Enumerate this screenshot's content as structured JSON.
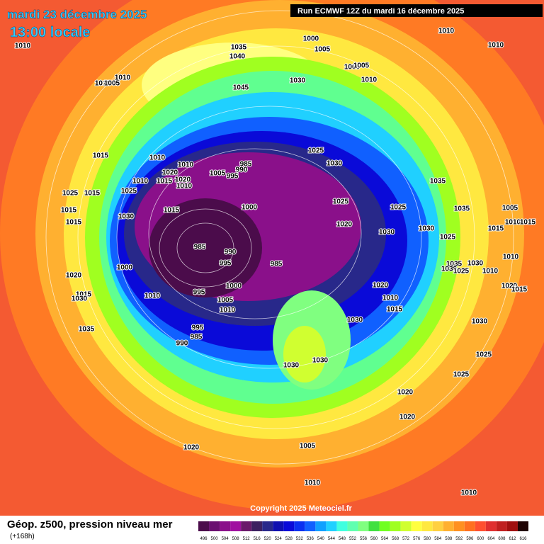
{
  "header": {
    "date": "mardi 23 décembre 2025",
    "time": "13:00 locale",
    "run": "Run ECMWF 12Z du mardi 16 décembre 2025"
  },
  "isobar_labels": [
    "1010",
    "1035",
    "1040",
    "1000",
    "1005",
    "1010",
    "1010",
    "1000",
    "1005",
    "1010",
    "1010",
    "1010",
    "1005",
    "1030",
    "1045",
    "1015",
    "1010",
    "1025",
    "1030",
    "1010",
    "985",
    "990",
    "1005",
    "995",
    "1020",
    "1010",
    "1015",
    "1020",
    "1010",
    "1025",
    "1025",
    "1015",
    "1035",
    "1000",
    "1015",
    "1025",
    "1025",
    "1035",
    "1005",
    "1015",
    "1015",
    "1030",
    "1020",
    "1010",
    "1015",
    "1015",
    "1030",
    "1030",
    "1025",
    "985",
    "990",
    "1000",
    "995",
    "985",
    "1035",
    "1030",
    "1030",
    "1025",
    "1010",
    "1010",
    "1020",
    "1020",
    "1020",
    "1015",
    "1000",
    "995",
    "1010",
    "1005",
    "1010",
    "1015",
    "1030",
    "1010",
    "1015",
    "1030",
    "1030",
    "995",
    "1035",
    "985",
    "990",
    "1030",
    "1030",
    "1025",
    "1025",
    "1020",
    "1020",
    "1020",
    "1005",
    "1010",
    "1010"
  ],
  "footer": {
    "copyright": "Copyright 2025 Meteociel.fr",
    "title": "Géop. z500, pression niveau mer",
    "lead": "(+168h)"
  },
  "colorbar": {
    "ticks": [
      496,
      500,
      504,
      508,
      512,
      516,
      520,
      524,
      528,
      532,
      536,
      540,
      544,
      548,
      552,
      556,
      560,
      564,
      568,
      572,
      576,
      580,
      584,
      588,
      592,
      596,
      600,
      604,
      608,
      612,
      616
    ],
    "colors": [
      "#4b0c4b",
      "#6a1070",
      "#8a108a",
      "#a010a0",
      "#6a1a6a",
      "#3c2060",
      "#28288a",
      "#1010b0",
      "#0a0ad8",
      "#0a30f0",
      "#1060ff",
      "#10a0ff",
      "#20d0ff",
      "#40ffe0",
      "#60ffb0",
      "#80ff80",
      "#40e040",
      "#70ff20",
      "#a0ff20",
      "#d0ff30",
      "#ffff40",
      "#ffe840",
      "#ffd040",
      "#ffb030",
      "#ff9020",
      "#ff7020",
      "#ff5030",
      "#e03030",
      "#c02020",
      "#a01010",
      "#200404"
    ]
  }
}
